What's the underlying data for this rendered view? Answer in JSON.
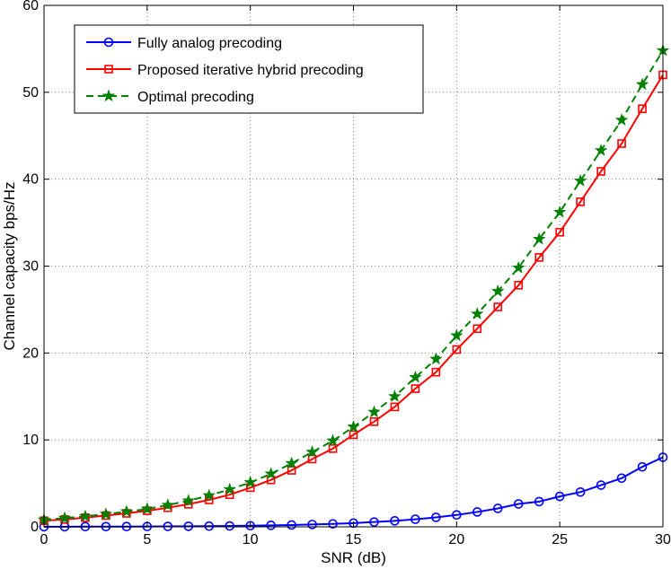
{
  "chart_data": {
    "type": "line",
    "title": "",
    "xlabel": "SNR (dB)",
    "ylabel": "Channel capacity bps/Hz",
    "xlim": [
      0,
      30
    ],
    "ylim": [
      0,
      60
    ],
    "xticks": [
      0,
      5,
      10,
      15,
      20,
      25,
      30
    ],
    "yticks": [
      0,
      10,
      20,
      30,
      40,
      50,
      60
    ],
    "grid": true,
    "grid_style": "dotted",
    "legend_position": "top-left",
    "x": [
      0,
      1,
      2,
      3,
      4,
      5,
      6,
      7,
      8,
      9,
      10,
      11,
      12,
      13,
      14,
      15,
      16,
      17,
      18,
      19,
      20,
      21,
      22,
      23,
      24,
      25,
      26,
      27,
      28,
      29,
      30
    ],
    "series": [
      {
        "name": "Fully analog precoding",
        "color": "#0000ff",
        "marker": "circle",
        "line_style": "solid",
        "values": [
          0.01,
          0.01,
          0.02,
          0.02,
          0.03,
          0.04,
          0.05,
          0.06,
          0.08,
          0.1,
          0.13,
          0.17,
          0.21,
          0.27,
          0.34,
          0.43,
          0.55,
          0.69,
          0.87,
          1.09,
          1.37,
          1.71,
          2.12,
          2.63,
          2.9,
          3.5,
          4.0,
          4.8,
          5.6,
          6.9,
          8.0
        ]
      },
      {
        "name": "Proposed iterative hybrid precoding",
        "color": "#ff0000",
        "marker": "square",
        "line_style": "solid",
        "values": [
          0.7,
          0.85,
          1.05,
          1.3,
          1.55,
          1.85,
          2.2,
          2.6,
          3.1,
          3.7,
          4.5,
          5.4,
          6.5,
          7.8,
          9.0,
          10.6,
          12.1,
          13.8,
          15.9,
          17.8,
          20.4,
          22.8,
          25.3,
          27.8,
          31.0,
          33.9,
          37.4,
          40.9,
          44.1,
          48.1,
          52.0
        ]
      },
      {
        "name": "Optimal precoding",
        "color": "#008000",
        "marker": "star",
        "line_style": "dashed",
        "values": [
          0.8,
          1.0,
          1.2,
          1.45,
          1.75,
          2.05,
          2.5,
          3.0,
          3.6,
          4.3,
          5.1,
          6.1,
          7.3,
          8.6,
          9.9,
          11.5,
          13.2,
          15.0,
          17.2,
          19.3,
          22.0,
          24.5,
          27.1,
          29.8,
          33.1,
          36.2,
          39.8,
          43.3,
          46.8,
          50.9,
          54.8
        ]
      }
    ]
  }
}
